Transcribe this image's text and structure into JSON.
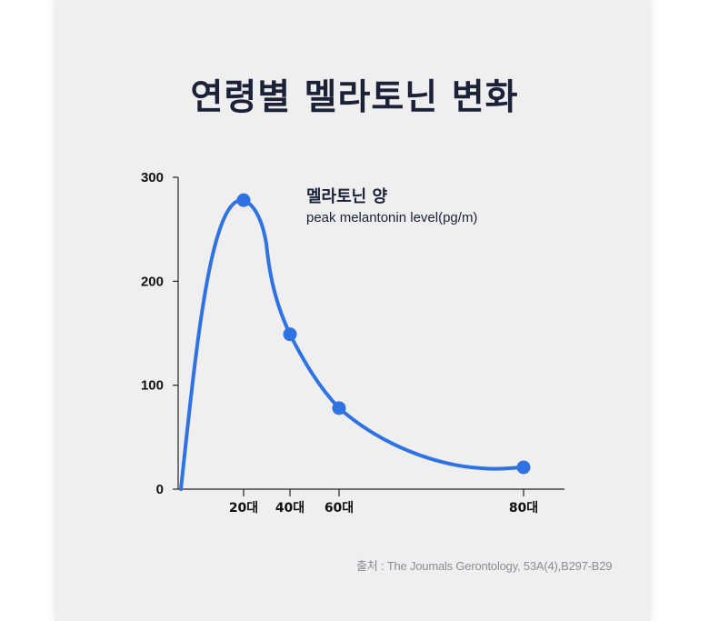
{
  "title": "연령별 멜라토닌 변화",
  "source": "출처 : The Joumals Gerontology, 53A(4),B297-B29",
  "colors": {
    "line": "#2f72e2",
    "text": "#1b2238",
    "axis": "#222222",
    "background": "#efeff0"
  },
  "chart_data": {
    "type": "line",
    "title": "연령별 멜라토닌 변화",
    "legend_title": "멜라토닌 양",
    "legend_subtitle": "peak melantonin level(pg/m)",
    "legend_position": "top-right",
    "grid": false,
    "yticks": [
      0,
      100,
      200,
      300
    ],
    "ylim": [
      0,
      300
    ],
    "x_ticks": [
      "20대",
      "40대",
      "60대",
      "80대"
    ],
    "series": [
      {
        "x": [
          "20대",
          "40대",
          "60대",
          "80대"
        ],
        "values": [
          278,
          149,
          78,
          21
        ]
      }
    ]
  }
}
